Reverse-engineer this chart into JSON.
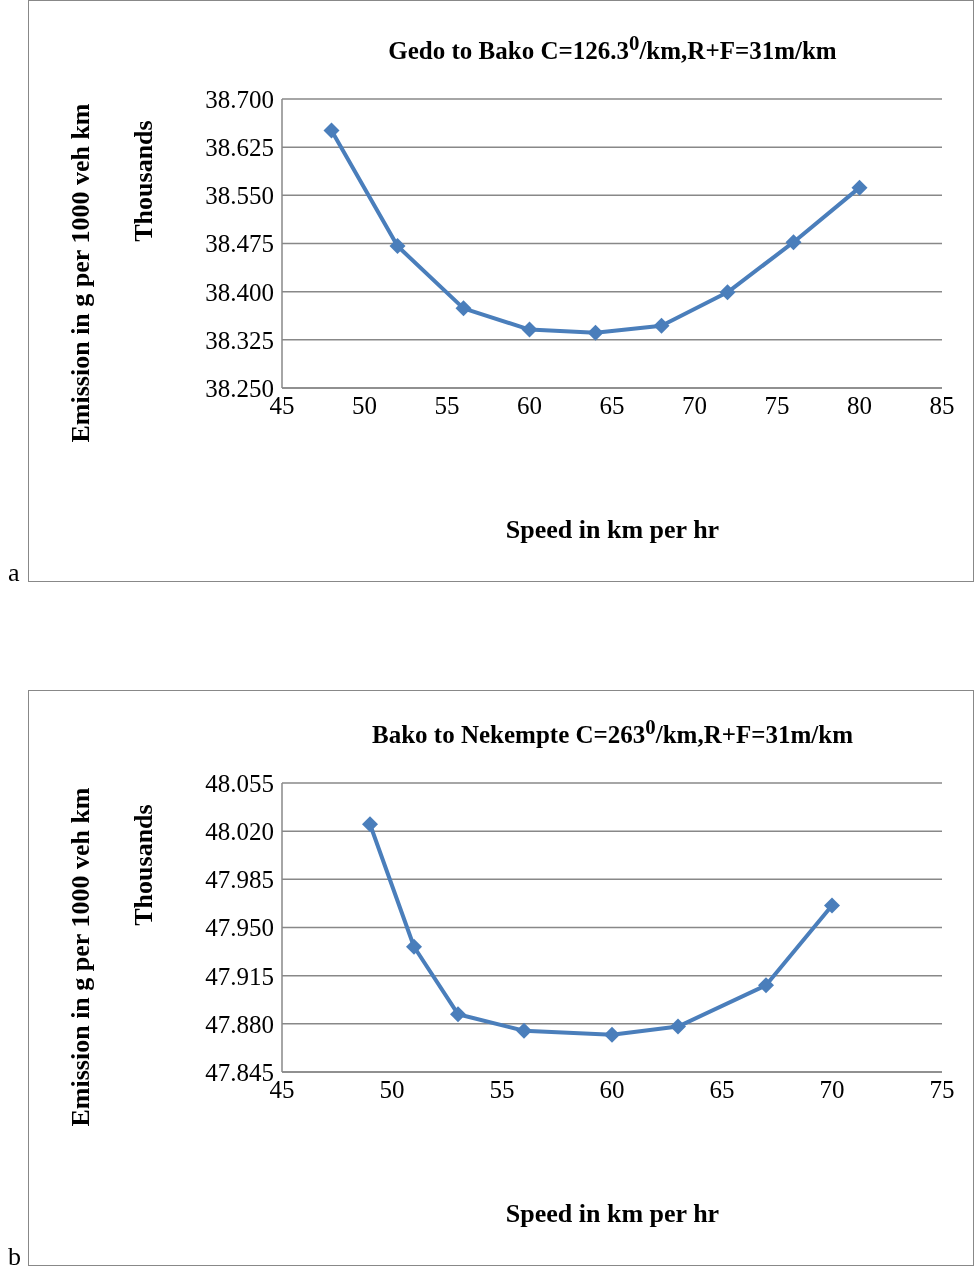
{
  "chart_data": [
    {
      "type": "line",
      "title": "Gedo to Bako C=126.3$^{0}$/km,R+F=31m/km",
      "xlabel": "Speed in km per hr",
      "ylabel": "Emission in g per 1000 veh km",
      "annotations": [
        "Thousands",
        "a"
      ],
      "x": [
        48,
        52,
        56,
        60,
        64,
        68,
        72,
        76,
        80
      ],
      "series": [
        {
          "color": "#4a7ebb",
          "values": [
            38.651,
            38.471,
            38.374,
            38.341,
            38.336,
            38.347,
            38.399,
            38.477,
            38.562
          ]
        }
      ],
      "xlim": [
        45,
        85
      ],
      "xticks": [
        45,
        50,
        55,
        60,
        65,
        70,
        75,
        80,
        85
      ],
      "ylim": [
        38.25,
        38.7
      ],
      "yticks": [
        {
          "value": 38.25,
          "label": "38.250"
        },
        {
          "value": 38.325,
          "label": "38.325"
        },
        {
          "value": 38.4,
          "label": "38.400"
        },
        {
          "value": 38.475,
          "label": "38.475"
        },
        {
          "value": 38.55,
          "label": "38.550"
        },
        {
          "value": 38.625,
          "label": "38.625"
        },
        {
          "value": 38.7,
          "label": "38.700"
        }
      ],
      "grid": "y",
      "marker": "diamond",
      "legend": false
    },
    {
      "type": "line",
      "title": "Bako to Nekempte C=263$^{0}$/km,R+F=31m/km",
      "xlabel": "Speed in km per hr",
      "ylabel": "Emission in g per 1000 veh km",
      "annotations": [
        "Thousands",
        "b"
      ],
      "x": [
        49,
        51,
        53,
        56,
        60,
        63,
        67,
        70
      ],
      "series": [
        {
          "color": "#4a7ebb",
          "values": [
            48.025,
            47.936,
            47.887,
            47.875,
            47.872,
            47.878,
            47.908,
            47.966
          ]
        }
      ],
      "xlim": [
        45,
        75
      ],
      "xticks": [
        45,
        50,
        55,
        60,
        65,
        70,
        75
      ],
      "ylim": [
        47.845,
        48.055
      ],
      "yticks": [
        {
          "value": 47.845,
          "label": "47.845"
        },
        {
          "value": 47.88,
          "label": "47.880"
        },
        {
          "value": 47.915,
          "label": "47.915"
        },
        {
          "value": 47.95,
          "label": "47.950"
        },
        {
          "value": 47.985,
          "label": "47.985"
        },
        {
          "value": 48.02,
          "label": "48.020"
        },
        {
          "value": 48.055,
          "label": "48.055"
        }
      ],
      "grid": "y",
      "marker": "diamond",
      "legend": false
    }
  ]
}
